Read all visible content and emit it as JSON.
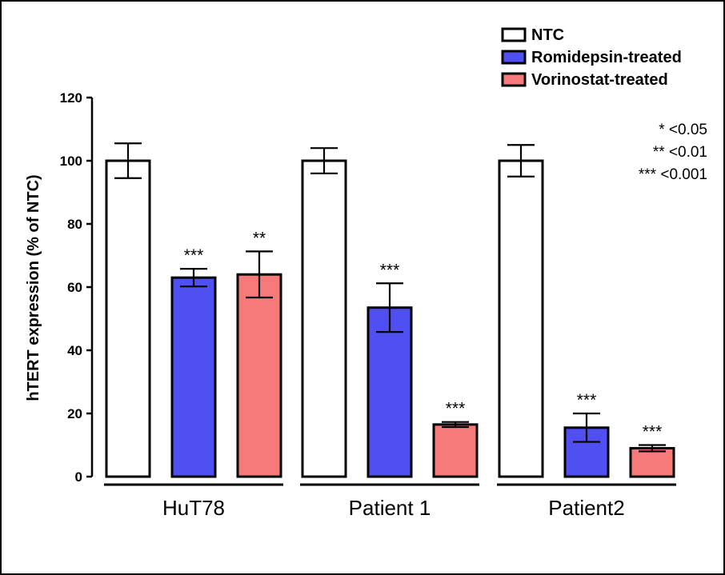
{
  "chart_data": {
    "type": "bar",
    "ylabel": "hTERT expression (% of NTC)",
    "ylim": [
      0,
      120
    ],
    "yticks": [
      0,
      20,
      40,
      60,
      80,
      100,
      120
    ],
    "categories": [
      "HuT78",
      "Patient 1",
      "Patient2"
    ],
    "series": [
      {
        "name": "NTC",
        "color": "#ffffff",
        "values": [
          100,
          100,
          100
        ],
        "errors": [
          5.5,
          4,
          5
        ],
        "significance": [
          "",
          "",
          ""
        ]
      },
      {
        "name": "Romidepsin-treated",
        "color": "#4f4ff2",
        "values": [
          63,
          53.5,
          15.5
        ],
        "errors": [
          2.8,
          7.7,
          4.5
        ],
        "significance": [
          "***",
          "***",
          "***"
        ]
      },
      {
        "name": "Vorinostat-treated",
        "color": "#f67a7a",
        "values": [
          64,
          16.5,
          9
        ],
        "errors": [
          7.3,
          0.8,
          1
        ],
        "significance": [
          "**",
          "***",
          "***"
        ]
      }
    ],
    "pvalue_key": [
      "* <0.05",
      "** <0.01",
      "*** <0.001"
    ],
    "legend_position": "top-right",
    "grid": false
  }
}
